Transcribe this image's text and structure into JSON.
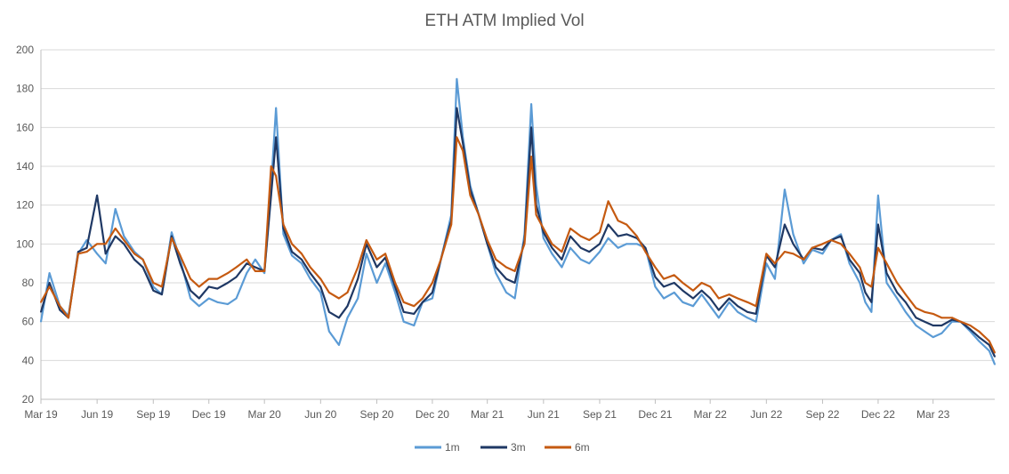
{
  "chart_data": {
    "type": "line",
    "title": "ETH ATM Implied Vol",
    "xlabel": "",
    "ylabel": "",
    "ylim": [
      20,
      200
    ],
    "yticks": [
      20,
      40,
      60,
      80,
      100,
      120,
      140,
      160,
      180,
      200
    ],
    "xlim": [
      "2019-03-01",
      "2023-06-10"
    ],
    "xticks": [
      {
        "date": "2019-03-01",
        "label": "Mar 19"
      },
      {
        "date": "2019-06-01",
        "label": "Jun 19"
      },
      {
        "date": "2019-09-01",
        "label": "Sep 19"
      },
      {
        "date": "2019-12-01",
        "label": "Dec 19"
      },
      {
        "date": "2020-03-01",
        "label": "Mar 20"
      },
      {
        "date": "2020-06-01",
        "label": "Jun 20"
      },
      {
        "date": "2020-09-01",
        "label": "Sep 20"
      },
      {
        "date": "2020-12-01",
        "label": "Dec 20"
      },
      {
        "date": "2021-03-01",
        "label": "Mar 21"
      },
      {
        "date": "2021-06-01",
        "label": "Jun 21"
      },
      {
        "date": "2021-09-01",
        "label": "Sep 21"
      },
      {
        "date": "2021-12-01",
        "label": "Dec 21"
      },
      {
        "date": "2022-03-01",
        "label": "Mar 22"
      },
      {
        "date": "2022-06-01",
        "label": "Jun 22"
      },
      {
        "date": "2022-09-01",
        "label": "Sep 22"
      },
      {
        "date": "2022-12-01",
        "label": "Dec 22"
      },
      {
        "date": "2023-03-01",
        "label": "Mar 23"
      }
    ],
    "grid": true,
    "legend_position": "bottom-center",
    "series": [
      {
        "name": "1m",
        "color": "#5B9BD5",
        "x": [
          "2019-03-01",
          "2019-03-15",
          "2019-04-01",
          "2019-04-15",
          "2019-05-01",
          "2019-05-15",
          "2019-06-01",
          "2019-06-15",
          "2019-07-01",
          "2019-07-15",
          "2019-08-01",
          "2019-08-15",
          "2019-09-01",
          "2019-09-15",
          "2019-10-01",
          "2019-10-15",
          "2019-11-01",
          "2019-11-15",
          "2019-12-01",
          "2019-12-15",
          "2020-01-01",
          "2020-01-15",
          "2020-02-01",
          "2020-02-15",
          "2020-03-01",
          "2020-03-12",
          "2020-03-20",
          "2020-04-01",
          "2020-04-15",
          "2020-05-01",
          "2020-05-15",
          "2020-06-01",
          "2020-06-15",
          "2020-07-01",
          "2020-07-15",
          "2020-08-01",
          "2020-08-15",
          "2020-09-01",
          "2020-09-15",
          "2020-10-01",
          "2020-10-15",
          "2020-11-01",
          "2020-11-15",
          "2020-12-01",
          "2020-12-15",
          "2021-01-01",
          "2021-01-10",
          "2021-01-20",
          "2021-02-01",
          "2021-02-15",
          "2021-03-01",
          "2021-03-15",
          "2021-04-01",
          "2021-04-15",
          "2021-05-01",
          "2021-05-12",
          "2021-05-20",
          "2021-06-01",
          "2021-06-15",
          "2021-07-01",
          "2021-07-15",
          "2021-08-01",
          "2021-08-15",
          "2021-09-01",
          "2021-09-15",
          "2021-10-01",
          "2021-10-15",
          "2021-11-01",
          "2021-11-15",
          "2021-12-01",
          "2021-12-15",
          "2022-01-01",
          "2022-01-15",
          "2022-02-01",
          "2022-02-15",
          "2022-03-01",
          "2022-03-15",
          "2022-04-01",
          "2022-04-15",
          "2022-05-01",
          "2022-05-15",
          "2022-06-01",
          "2022-06-15",
          "2022-07-01",
          "2022-07-15",
          "2022-08-01",
          "2022-08-15",
          "2022-09-01",
          "2022-09-15",
          "2022-10-01",
          "2022-10-15",
          "2022-11-01",
          "2022-11-10",
          "2022-11-20",
          "2022-12-01",
          "2022-12-15",
          "2023-01-01",
          "2023-01-15",
          "2023-02-01",
          "2023-02-15",
          "2023-03-01",
          "2023-03-15",
          "2023-04-01",
          "2023-04-15",
          "2023-05-01",
          "2023-05-15",
          "2023-06-01",
          "2023-06-10"
        ],
        "values": [
          60,
          85,
          68,
          63,
          95,
          102,
          95,
          90,
          118,
          104,
          96,
          92,
          78,
          74,
          106,
          92,
          72,
          68,
          72,
          70,
          69,
          72,
          85,
          92,
          85,
          130,
          170,
          105,
          94,
          90,
          82,
          75,
          55,
          48,
          62,
          72,
          95,
          80,
          90,
          75,
          60,
          58,
          70,
          72,
          92,
          115,
          185,
          155,
          130,
          115,
          100,
          85,
          75,
          72,
          105,
          172,
          130,
          103,
          95,
          88,
          98,
          92,
          90,
          96,
          103,
          98,
          100,
          100,
          98,
          78,
          72,
          75,
          70,
          68,
          74,
          68,
          62,
          70,
          65,
          62,
          60,
          90,
          82,
          128,
          105,
          90,
          97,
          95,
          102,
          105,
          90,
          80,
          70,
          65,
          125,
          80,
          72,
          65,
          58,
          55,
          52,
          54,
          60,
          60,
          55,
          50,
          45,
          38
        ]
      },
      {
        "name": "3m",
        "color": "#1F3864",
        "x": [
          "2019-03-01",
          "2019-03-15",
          "2019-04-01",
          "2019-04-15",
          "2019-05-01",
          "2019-05-15",
          "2019-06-01",
          "2019-06-15",
          "2019-07-01",
          "2019-07-15",
          "2019-08-01",
          "2019-08-15",
          "2019-09-01",
          "2019-09-15",
          "2019-10-01",
          "2019-10-15",
          "2019-11-01",
          "2019-11-15",
          "2019-12-01",
          "2019-12-15",
          "2020-01-01",
          "2020-01-15",
          "2020-02-01",
          "2020-02-15",
          "2020-03-01",
          "2020-03-12",
          "2020-03-20",
          "2020-04-01",
          "2020-04-15",
          "2020-05-01",
          "2020-05-15",
          "2020-06-01",
          "2020-06-15",
          "2020-07-01",
          "2020-07-15",
          "2020-08-01",
          "2020-08-15",
          "2020-09-01",
          "2020-09-15",
          "2020-10-01",
          "2020-10-15",
          "2020-11-01",
          "2020-11-15",
          "2020-12-01",
          "2020-12-15",
          "2021-01-01",
          "2021-01-10",
          "2021-01-20",
          "2021-02-01",
          "2021-02-15",
          "2021-03-01",
          "2021-03-15",
          "2021-04-01",
          "2021-04-15",
          "2021-05-01",
          "2021-05-12",
          "2021-05-20",
          "2021-06-01",
          "2021-06-15",
          "2021-07-01",
          "2021-07-15",
          "2021-08-01",
          "2021-08-15",
          "2021-09-01",
          "2021-09-15",
          "2021-10-01",
          "2021-10-15",
          "2021-11-01",
          "2021-11-15",
          "2021-12-01",
          "2021-12-15",
          "2022-01-01",
          "2022-01-15",
          "2022-02-01",
          "2022-02-15",
          "2022-03-01",
          "2022-03-15",
          "2022-04-01",
          "2022-04-15",
          "2022-05-01",
          "2022-05-15",
          "2022-06-01",
          "2022-06-15",
          "2022-07-01",
          "2022-07-15",
          "2022-08-01",
          "2022-08-15",
          "2022-09-01",
          "2022-09-15",
          "2022-10-01",
          "2022-10-15",
          "2022-11-01",
          "2022-11-10",
          "2022-11-20",
          "2022-12-01",
          "2022-12-15",
          "2023-01-01",
          "2023-01-15",
          "2023-02-01",
          "2023-02-15",
          "2023-03-01",
          "2023-03-15",
          "2023-04-01",
          "2023-04-15",
          "2023-05-01",
          "2023-05-15",
          "2023-06-01",
          "2023-06-10"
        ],
        "values": [
          65,
          80,
          66,
          62,
          96,
          98,
          125,
          95,
          104,
          100,
          92,
          88,
          76,
          74,
          104,
          90,
          76,
          72,
          78,
          77,
          80,
          83,
          90,
          88,
          86,
          125,
          155,
          108,
          96,
          92,
          85,
          78,
          65,
          62,
          68,
          82,
          100,
          88,
          93,
          78,
          65,
          64,
          70,
          75,
          92,
          112,
          170,
          152,
          128,
          115,
          100,
          88,
          82,
          80,
          102,
          160,
          120,
          106,
          98,
          92,
          104,
          98,
          96,
          100,
          110,
          104,
          105,
          103,
          98,
          83,
          78,
          80,
          76,
          72,
          76,
          72,
          66,
          72,
          68,
          65,
          64,
          94,
          88,
          110,
          100,
          92,
          98,
          97,
          102,
          104,
          92,
          85,
          75,
          70,
          110,
          85,
          75,
          70,
          62,
          60,
          58,
          58,
          61,
          60,
          56,
          52,
          48,
          42
        ]
      },
      {
        "name": "6m",
        "color": "#C55A11",
        "x": [
          "2019-03-01",
          "2019-03-15",
          "2019-04-01",
          "2019-04-15",
          "2019-05-01",
          "2019-05-15",
          "2019-06-01",
          "2019-06-15",
          "2019-07-01",
          "2019-07-15",
          "2019-08-01",
          "2019-08-15",
          "2019-09-01",
          "2019-09-15",
          "2019-10-01",
          "2019-10-15",
          "2019-11-01",
          "2019-11-15",
          "2019-12-01",
          "2019-12-15",
          "2020-01-01",
          "2020-01-15",
          "2020-02-01",
          "2020-02-15",
          "2020-03-01",
          "2020-03-12",
          "2020-03-20",
          "2020-04-01",
          "2020-04-15",
          "2020-05-01",
          "2020-05-15",
          "2020-06-01",
          "2020-06-15",
          "2020-07-01",
          "2020-07-15",
          "2020-08-01",
          "2020-08-15",
          "2020-09-01",
          "2020-09-15",
          "2020-10-01",
          "2020-10-15",
          "2020-11-01",
          "2020-11-15",
          "2020-12-01",
          "2020-12-15",
          "2021-01-01",
          "2021-01-10",
          "2021-01-20",
          "2021-02-01",
          "2021-02-15",
          "2021-03-01",
          "2021-03-15",
          "2021-04-01",
          "2021-04-15",
          "2021-05-01",
          "2021-05-12",
          "2021-05-20",
          "2021-06-01",
          "2021-06-15",
          "2021-07-01",
          "2021-07-15",
          "2021-08-01",
          "2021-08-15",
          "2021-09-01",
          "2021-09-15",
          "2021-10-01",
          "2021-10-15",
          "2021-11-01",
          "2021-11-15",
          "2021-12-01",
          "2021-12-15",
          "2022-01-01",
          "2022-01-15",
          "2022-02-01",
          "2022-02-15",
          "2022-03-01",
          "2022-03-15",
          "2022-04-01",
          "2022-04-15",
          "2022-05-01",
          "2022-05-15",
          "2022-06-01",
          "2022-06-15",
          "2022-07-01",
          "2022-07-15",
          "2022-08-01",
          "2022-08-15",
          "2022-09-01",
          "2022-09-15",
          "2022-10-01",
          "2022-10-15",
          "2022-11-01",
          "2022-11-10",
          "2022-11-20",
          "2022-12-01",
          "2022-12-15",
          "2023-01-01",
          "2023-01-15",
          "2023-02-01",
          "2023-02-15",
          "2023-03-01",
          "2023-03-15",
          "2023-04-01",
          "2023-04-15",
          "2023-05-01",
          "2023-05-15",
          "2023-06-01",
          "2023-06-10"
        ],
        "values": [
          70,
          78,
          68,
          62,
          95,
          96,
          100,
          100,
          108,
          102,
          95,
          92,
          80,
          78,
          103,
          94,
          82,
          78,
          82,
          82,
          85,
          88,
          92,
          86,
          86,
          140,
          135,
          110,
          100,
          95,
          88,
          82,
          75,
          72,
          75,
          88,
          102,
          92,
          95,
          80,
          70,
          68,
          72,
          80,
          92,
          110,
          155,
          148,
          125,
          115,
          102,
          92,
          88,
          86,
          100,
          145,
          115,
          108,
          100,
          96,
          108,
          104,
          102,
          106,
          122,
          112,
          110,
          104,
          96,
          88,
          82,
          84,
          80,
          76,
          80,
          78,
          72,
          74,
          72,
          70,
          68,
          95,
          90,
          96,
          95,
          92,
          98,
          100,
          102,
          100,
          95,
          88,
          80,
          78,
          98,
          90,
          80,
          74,
          67,
          65,
          64,
          62,
          62,
          60,
          58,
          55,
          50,
          44
        ]
      }
    ]
  }
}
